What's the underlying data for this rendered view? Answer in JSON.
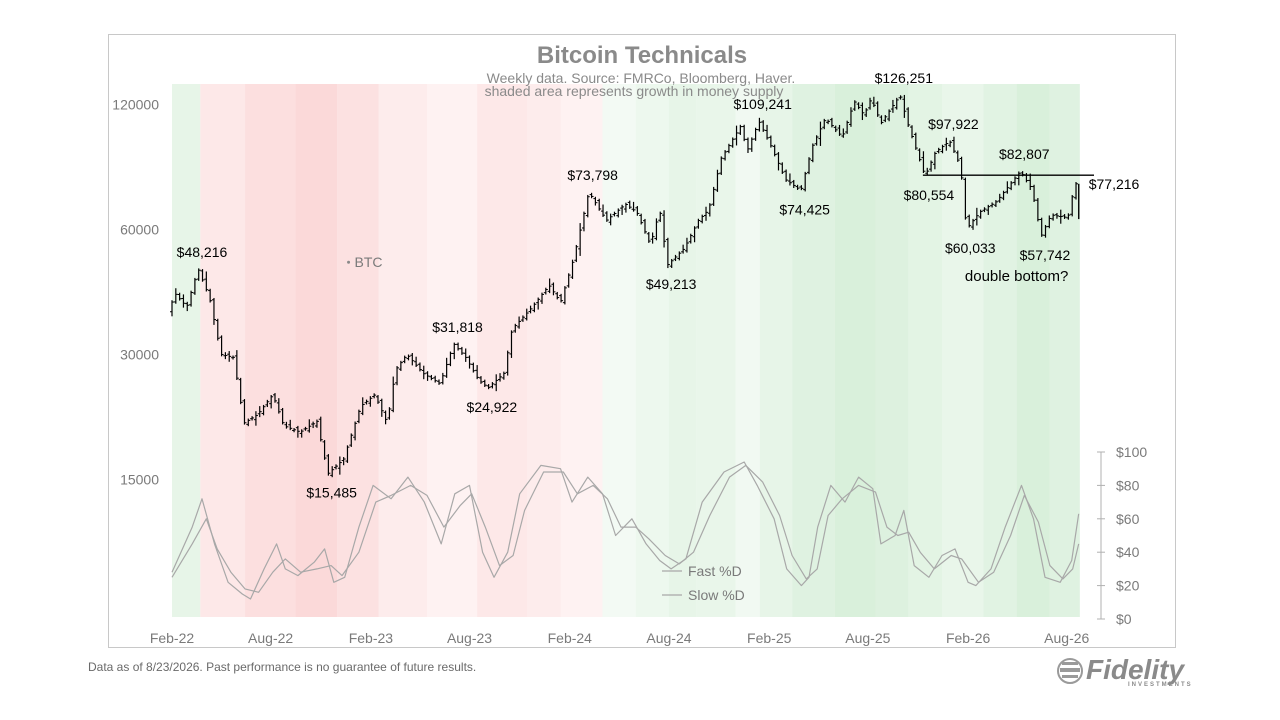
{
  "chart_data": {
    "type": "bar",
    "title": "Bitcoin Technicals",
    "subtitle": [
      "Weekly data.  Source: FMRCo, Bloomberg, Haver.",
      "shaded area represents growth in money supply"
    ],
    "series_label": "BTC",
    "y_scale": "log",
    "ylim": [
      7000,
      135000
    ],
    "y_ticks": [
      120000,
      60000,
      30000,
      15000
    ],
    "x_ticks": [
      "Feb-22",
      "Aug-22",
      "Feb-23",
      "Aug-23",
      "Feb-24",
      "Aug-24",
      "Feb-25",
      "Aug-25",
      "Feb-26",
      "Aug-26"
    ],
    "x_range": [
      "2022-02-01",
      "2026-09-20"
    ],
    "btc_anchors": [
      [
        "2022-02-01",
        38000
      ],
      [
        "2022-02-14",
        42000
      ],
      [
        "2022-03-07",
        39000
      ],
      [
        "2022-03-28",
        48216
      ],
      [
        "2022-04-18",
        41000
      ],
      [
        "2022-05-09",
        30000
      ],
      [
        "2022-06-01",
        29500
      ],
      [
        "2022-06-20",
        20500
      ],
      [
        "2022-07-15",
        21500
      ],
      [
        "2022-08-12",
        24000
      ],
      [
        "2022-09-01",
        20200
      ],
      [
        "2022-10-01",
        19500
      ],
      [
        "2022-11-01",
        20700
      ],
      [
        "2022-11-21",
        15485
      ],
      [
        "2022-12-20",
        16800
      ],
      [
        "2023-01-20",
        22500
      ],
      [
        "2023-02-15",
        24000
      ],
      [
        "2023-03-10",
        20500
      ],
      [
        "2023-03-25",
        27500
      ],
      [
        "2023-04-15",
        30000
      ],
      [
        "2023-05-15",
        27000
      ],
      [
        "2023-06-15",
        25500
      ],
      [
        "2023-07-10",
        31818
      ],
      [
        "2023-08-01",
        29500
      ],
      [
        "2023-08-25",
        26000
      ],
      [
        "2023-09-11",
        24922
      ],
      [
        "2023-10-10",
        27000
      ],
      [
        "2023-10-25",
        34500
      ],
      [
        "2023-12-01",
        39000
      ],
      [
        "2024-01-01",
        44000
      ],
      [
        "2024-01-22",
        40000
      ],
      [
        "2024-02-15",
        51000
      ],
      [
        "2024-03-14",
        73798
      ],
      [
        "2024-04-15",
        63000
      ],
      [
        "2024-05-20",
        69000
      ],
      [
        "2024-06-10",
        66000
      ],
      [
        "2024-07-05",
        55000
      ],
      [
        "2024-07-22",
        67000
      ],
      [
        "2024-08-05",
        49213
      ],
      [
        "2024-09-05",
        54000
      ],
      [
        "2024-10-01",
        63000
      ],
      [
        "2024-10-20",
        67000
      ],
      [
        "2024-11-12",
        89000
      ],
      [
        "2024-12-17",
        106000
      ],
      [
        "2024-12-30",
        93000
      ],
      [
        "2025-01-20",
        109241
      ],
      [
        "2025-02-10",
        96000
      ],
      [
        "2025-03-10",
        79000
      ],
      [
        "2025-04-07",
        74425
      ],
      [
        "2025-04-28",
        95000
      ],
      [
        "2025-05-22",
        111000
      ],
      [
        "2025-06-22",
        100000
      ],
      [
        "2025-07-14",
        122000
      ],
      [
        "2025-08-01",
        113000
      ],
      [
        "2025-08-14",
        124000
      ],
      [
        "2025-09-01",
        108000
      ],
      [
        "2025-10-06",
        126251
      ],
      [
        "2025-10-20",
        108000
      ],
      [
        "2025-11-21",
        80554
      ],
      [
        "2025-12-10",
        92000
      ],
      [
        "2026-01-05",
        97922
      ],
      [
        "2026-01-25",
        85000
      ],
      [
        "2026-02-05",
        60033
      ],
      [
        "2026-03-01",
        66000
      ],
      [
        "2026-04-01",
        70000
      ],
      [
        "2026-05-15",
        82807
      ],
      [
        "2026-06-05",
        75000
      ],
      [
        "2026-06-22",
        57742
      ],
      [
        "2026-07-10",
        65000
      ],
      [
        "2026-08-10",
        64000
      ],
      [
        "2026-08-23",
        77216
      ]
    ],
    "oscillator": {
      "axis_label_prefix": "$",
      "ylim": [
        0,
        100
      ],
      "y_ticks": [
        "$100",
        "$80",
        "$60",
        "$40",
        "$20",
        "$0"
      ],
      "legend": [
        "Fast %D",
        "Slow %D"
      ],
      "fast_d": [
        [
          "2022-02-01",
          28
        ],
        [
          "2022-03-10",
          55
        ],
        [
          "2022-03-28",
          72
        ],
        [
          "2022-04-20",
          45
        ],
        [
          "2022-05-15",
          22
        ],
        [
          "2022-06-10",
          15
        ],
        [
          "2022-06-25",
          12
        ],
        [
          "2022-07-20",
          30
        ],
        [
          "2022-08-12",
          45
        ],
        [
          "2022-08-28",
          30
        ],
        [
          "2022-09-20",
          26
        ],
        [
          "2022-10-20",
          34
        ],
        [
          "2022-11-08",
          42
        ],
        [
          "2022-11-25",
          22
        ],
        [
          "2022-12-15",
          25
        ],
        [
          "2023-01-10",
          55
        ],
        [
          "2023-02-05",
          80
        ],
        [
          "2023-03-10",
          72
        ],
        [
          "2023-04-10",
          85
        ],
        [
          "2023-05-10",
          70
        ],
        [
          "2023-06-10",
          45
        ],
        [
          "2023-07-05",
          75
        ],
        [
          "2023-08-01",
          80
        ],
        [
          "2023-08-25",
          40
        ],
        [
          "2023-09-15",
          25
        ],
        [
          "2023-10-10",
          40
        ],
        [
          "2023-11-01",
          75
        ],
        [
          "2023-12-10",
          92
        ],
        [
          "2024-01-15",
          90
        ],
        [
          "2024-02-05",
          70
        ],
        [
          "2024-03-05",
          85
        ],
        [
          "2024-04-01",
          75
        ],
        [
          "2024-04-25",
          50
        ],
        [
          "2024-05-25",
          60
        ],
        [
          "2024-06-20",
          45
        ],
        [
          "2024-07-15",
          35
        ],
        [
          "2024-08-05",
          30
        ],
        [
          "2024-09-01",
          36
        ],
        [
          "2024-10-01",
          70
        ],
        [
          "2024-11-10",
          88
        ],
        [
          "2024-12-17",
          94
        ],
        [
          "2025-01-10",
          80
        ],
        [
          "2025-02-10",
          60
        ],
        [
          "2025-03-05",
          30
        ],
        [
          "2025-04-01",
          20
        ],
        [
          "2025-04-15",
          25
        ],
        [
          "2025-05-01",
          55
        ],
        [
          "2025-05-25",
          80
        ],
        [
          "2025-06-20",
          70
        ],
        [
          "2025-07-15",
          85
        ],
        [
          "2025-08-10",
          78
        ],
        [
          "2025-08-25",
          45
        ],
        [
          "2025-09-20",
          50
        ],
        [
          "2025-10-06",
          65
        ],
        [
          "2025-10-25",
          32
        ],
        [
          "2025-11-21",
          25
        ],
        [
          "2025-12-15",
          38
        ],
        [
          "2026-01-08",
          42
        ],
        [
          "2026-02-01",
          22
        ],
        [
          "2026-02-15",
          20
        ],
        [
          "2026-03-15",
          30
        ],
        [
          "2026-04-10",
          55
        ],
        [
          "2026-05-10",
          80
        ],
        [
          "2026-06-01",
          60
        ],
        [
          "2026-06-22",
          25
        ],
        [
          "2026-07-20",
          22
        ],
        [
          "2026-08-10",
          35
        ],
        [
          "2026-08-23",
          63
        ]
      ],
      "slow_d": [
        [
          "2022-02-01",
          25
        ],
        [
          "2022-03-10",
          45
        ],
        [
          "2022-04-05",
          60
        ],
        [
          "2022-04-25",
          42
        ],
        [
          "2022-05-20",
          28
        ],
        [
          "2022-06-15",
          18
        ],
        [
          "2022-07-10",
          16
        ],
        [
          "2022-08-05",
          28
        ],
        [
          "2022-08-28",
          36
        ],
        [
          "2022-09-25",
          28
        ],
        [
          "2022-10-25",
          30
        ],
        [
          "2022-11-20",
          32
        ],
        [
          "2022-12-10",
          26
        ],
        [
          "2023-01-10",
          40
        ],
        [
          "2023-02-10",
          70
        ],
        [
          "2023-03-10",
          74
        ],
        [
          "2023-04-15",
          80
        ],
        [
          "2023-05-15",
          74
        ],
        [
          "2023-06-15",
          55
        ],
        [
          "2023-07-15",
          68
        ],
        [
          "2023-08-05",
          75
        ],
        [
          "2023-08-30",
          55
        ],
        [
          "2023-09-25",
          32
        ],
        [
          "2023-10-20",
          38
        ],
        [
          "2023-11-10",
          65
        ],
        [
          "2023-12-15",
          88
        ],
        [
          "2024-01-20",
          88
        ],
        [
          "2024-02-15",
          75
        ],
        [
          "2024-03-15",
          80
        ],
        [
          "2024-04-10",
          72
        ],
        [
          "2024-05-05",
          55
        ],
        [
          "2024-06-01",
          55
        ],
        [
          "2024-06-25",
          48
        ],
        [
          "2024-07-25",
          38
        ],
        [
          "2024-08-20",
          33
        ],
        [
          "2024-09-15",
          40
        ],
        [
          "2024-10-15",
          62
        ],
        [
          "2024-11-20",
          85
        ],
        [
          "2024-12-20",
          92
        ],
        [
          "2025-01-20",
          82
        ],
        [
          "2025-02-20",
          62
        ],
        [
          "2025-03-15",
          38
        ],
        [
          "2025-04-10",
          24
        ],
        [
          "2025-04-30",
          30
        ],
        [
          "2025-05-20",
          62
        ],
        [
          "2025-06-15",
          72
        ],
        [
          "2025-07-15",
          80
        ],
        [
          "2025-08-15",
          76
        ],
        [
          "2025-09-05",
          55
        ],
        [
          "2025-09-25",
          50
        ],
        [
          "2025-10-15",
          52
        ],
        [
          "2025-11-05",
          40
        ],
        [
          "2025-12-01",
          30
        ],
        [
          "2026-01-01",
          38
        ],
        [
          "2026-01-20",
          36
        ],
        [
          "2026-02-20",
          22
        ],
        [
          "2026-03-20",
          28
        ],
        [
          "2026-04-20",
          50
        ],
        [
          "2026-05-15",
          74
        ],
        [
          "2026-06-10",
          58
        ],
        [
          "2026-07-01",
          32
        ],
        [
          "2026-07-25",
          24
        ],
        [
          "2026-08-12",
          30
        ],
        [
          "2026-08-23",
          45
        ]
      ]
    },
    "annotations": [
      {
        "text": "$48,216",
        "date": "2022-03-28",
        "value": 48216,
        "pos": "above"
      },
      {
        "text": "$15,485",
        "date": "2022-11-21",
        "value": 15485,
        "pos": "below"
      },
      {
        "text": "$31,818",
        "date": "2023-07-10",
        "value": 31818,
        "pos": "above"
      },
      {
        "text": "$24,922",
        "date": "2023-09-11",
        "value": 24922,
        "pos": "below"
      },
      {
        "text": "$73,798",
        "date": "2024-03-14",
        "value": 73798,
        "pos": "above"
      },
      {
        "text": "$49,213",
        "date": "2024-08-05",
        "value": 49213,
        "pos": "below"
      },
      {
        "text": "$109,241",
        "date": "2025-01-20",
        "value": 109241,
        "pos": "above"
      },
      {
        "text": "$74,425",
        "date": "2025-04-07",
        "value": 74425,
        "pos": "below"
      },
      {
        "text": "$126,251",
        "date": "2025-10-06",
        "value": 126251,
        "pos": "above"
      },
      {
        "text": "$97,922",
        "date": "2026-01-05",
        "value": 97922,
        "pos": "above"
      },
      {
        "text": "$80,554",
        "date": "2025-11-21",
        "value": 80554,
        "pos": "below"
      },
      {
        "text": "$60,033",
        "date": "2026-02-05",
        "value": 60033,
        "pos": "below"
      },
      {
        "text": "$82,807",
        "date": "2026-05-15",
        "value": 82807,
        "pos": "above"
      },
      {
        "text": "$57,742",
        "date": "2026-06-22",
        "value": 57742,
        "pos": "below"
      },
      {
        "text": "$77,216",
        "date": "2026-08-23",
        "value": 77216,
        "pos": "right"
      }
    ],
    "note": "double bottom?",
    "resistance_level": 81000,
    "resistance_range": [
      "2025-11-10",
      "2026-09-20"
    ],
    "shading": {
      "green": "#d7efd9",
      "red": "#fbd9d9",
      "bands": [
        [
          "2022-02-01",
          "2022-03-25",
          "green",
          0.6
        ],
        [
          "2022-03-25",
          "2022-06-15",
          "red",
          0.6
        ],
        [
          "2022-06-15",
          "2022-09-15",
          "red",
          0.85
        ],
        [
          "2022-09-15",
          "2022-12-01",
          "red",
          1.0
        ],
        [
          "2022-12-01",
          "2023-02-15",
          "red",
          0.8
        ],
        [
          "2023-02-15",
          "2023-05-15",
          "red",
          0.5
        ],
        [
          "2023-05-15",
          "2023-08-15",
          "red",
          0.35
        ],
        [
          "2023-08-15",
          "2023-11-15",
          "red",
          0.6
        ],
        [
          "2023-11-15",
          "2024-01-15",
          "red",
          0.5
        ],
        [
          "2024-01-15",
          "2024-04-01",
          "red",
          0.35
        ],
        [
          "2024-04-01",
          "2024-06-01",
          "green",
          0.3
        ],
        [
          "2024-06-01",
          "2024-08-01",
          "green",
          0.45
        ],
        [
          "2024-08-01",
          "2024-09-20",
          "green",
          0.6
        ],
        [
          "2024-09-20",
          "2024-12-01",
          "green",
          0.55
        ],
        [
          "2024-12-01",
          "2025-01-15",
          "green",
          0.35
        ],
        [
          "2025-01-15",
          "2025-03-15",
          "green",
          0.6
        ],
        [
          "2025-03-15",
          "2025-06-01",
          "green",
          0.8
        ],
        [
          "2025-06-01",
          "2025-08-15",
          "green",
          0.95
        ],
        [
          "2025-08-15",
          "2025-10-15",
          "green",
          0.85
        ],
        [
          "2025-10-15",
          "2025-12-15",
          "green",
          0.7
        ],
        [
          "2025-12-15",
          "2026-03-01",
          "green",
          0.55
        ],
        [
          "2026-03-01",
          "2026-05-01",
          "green",
          0.75
        ],
        [
          "2026-05-01",
          "2026-07-01",
          "green",
          0.95
        ],
        [
          "2026-07-01",
          "2026-08-25",
          "green",
          0.8
        ]
      ]
    },
    "colors": {
      "bars": "#000000",
      "oscillator": "#a8a8a8",
      "axis_text": "#7a7a7a",
      "title": "#8a8a8a"
    }
  },
  "footnote": "Data as of 8/23/2026. Past performance is no guarantee of future results.",
  "logo": {
    "word": "Fidelity",
    "sub": "INVESTMENTS"
  }
}
